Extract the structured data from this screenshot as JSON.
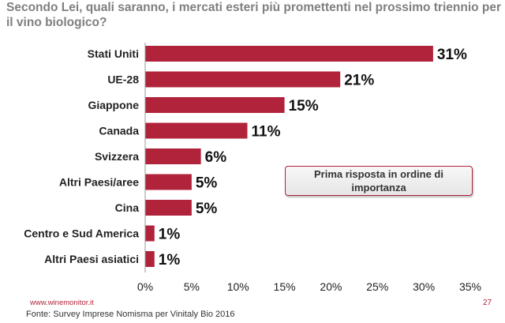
{
  "header": {
    "question": "Secondo Lei, quali saranno, i mercati esteri più promettenti nel prossimo triennio per il vino biologico?"
  },
  "note": "Prima risposta in ordine di importanza",
  "footer": {
    "url": "www.winemonitor.it",
    "page": "27",
    "source": "Fonte: Survey Imprese Nomisma per Vinitaly Bio 2016"
  },
  "colors": {
    "bar": "#b0233a",
    "accent": "#b0233a"
  },
  "chart_data": {
    "type": "bar",
    "orientation": "horizontal",
    "categories": [
      "Stati Uniti",
      "UE-28",
      "Giappone",
      "Canada",
      "Svizzera",
      "Altri Paesi/aree",
      "Cina",
      "Centro e Sud America",
      "Altri Paesi asiatici"
    ],
    "values": [
      31,
      21,
      15,
      11,
      6,
      5,
      5,
      1,
      1
    ],
    "value_labels": [
      "31%",
      "21%",
      "15%",
      "11%",
      "6%",
      "5%",
      "5%",
      "1%",
      "1%"
    ],
    "xlim": [
      0,
      35
    ],
    "xticks": [
      "0%",
      "5%",
      "10%",
      "15%",
      "20%",
      "25%",
      "30%",
      "35%"
    ],
    "grid": false
  }
}
